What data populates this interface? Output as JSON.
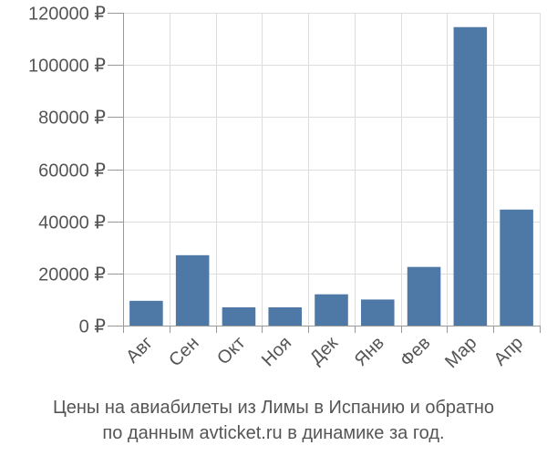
{
  "chart_data": {
    "type": "bar",
    "categories": [
      "Авг",
      "Сен",
      "Окт",
      "Ноя",
      "Дек",
      "Янв",
      "Фев",
      "Мар",
      "Апр"
    ],
    "values": [
      9500,
      27000,
      7000,
      7000,
      12000,
      10000,
      22500,
      114500,
      44500
    ],
    "yticks": [
      "0 ₽",
      "20000 ₽",
      "40000 ₽",
      "60000 ₽",
      "80000 ₽",
      "100000 ₽",
      "120000 ₽"
    ],
    "ytick_values": [
      0,
      20000,
      40000,
      60000,
      80000,
      100000,
      120000
    ],
    "ylim": [
      0,
      120000
    ],
    "grid": true,
    "bar_color": "#4e79a7"
  },
  "caption": {
    "line1": "Цены на авиабилеты из Лимы в Испанию и обратно",
    "line2": "по данным avticket.ru в динамике за год."
  }
}
